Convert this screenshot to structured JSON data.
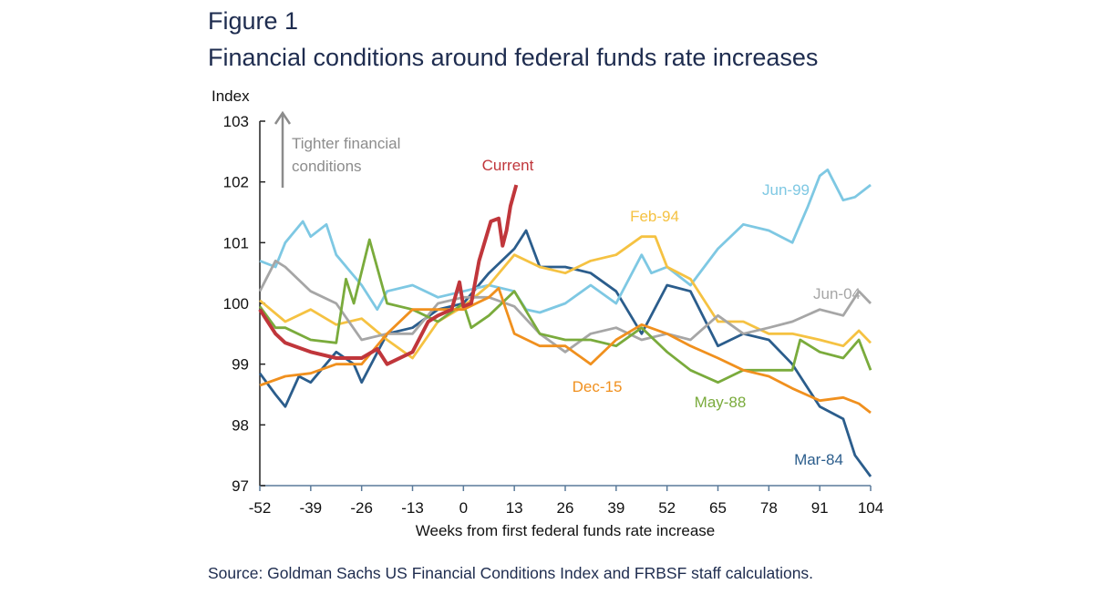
{
  "figure_label": "Figure 1",
  "title": "Financial conditions around federal funds rate increases",
  "source": "Source: Goldman Sachs US Financial Conditions Index and FRBSF staff calculations.",
  "chart_data": {
    "type": "line",
    "title": "Financial conditions around federal funds rate increases",
    "xlabel": "Weeks from first federal funds rate increase",
    "ylabel": "Index",
    "xlim": [
      -52,
      104
    ],
    "ylim": [
      97,
      103
    ],
    "xticks": [
      -52,
      -39,
      -26,
      -13,
      0,
      13,
      26,
      39,
      52,
      65,
      78,
      91,
      104
    ],
    "yticks": [
      97,
      98,
      99,
      100,
      101,
      102,
      103
    ],
    "grid": false,
    "annotation": {
      "text": "Tighter financial conditions",
      "line1": "Tighter financial",
      "line2": "conditions",
      "color": "#8c8c8c"
    },
    "series": [
      {
        "name": "Mar-84",
        "color": "#2b5d8c",
        "x": [
          -52,
          -48,
          -45.5,
          -42,
          -39,
          -32.5,
          -28,
          -26,
          -19.5,
          -13,
          -6.5,
          0,
          6.5,
          13,
          16,
          19.5,
          26,
          32.5,
          39,
          45.5,
          52,
          58,
          65,
          71.5,
          78,
          84,
          91,
          97,
          100,
          104
        ],
        "y": [
          98.85,
          98.5,
          98.3,
          98.8,
          98.7,
          99.2,
          99.0,
          98.7,
          99.5,
          99.6,
          99.9,
          100.0,
          100.5,
          100.9,
          101.2,
          100.6,
          100.6,
          100.5,
          100.2,
          99.5,
          100.3,
          100.2,
          99.3,
          99.5,
          99.4,
          99.0,
          98.3,
          98.1,
          97.5,
          97.15
        ]
      },
      {
        "name": "Jun-99",
        "color": "#7ec8e3",
        "x": [
          -52,
          -48,
          -45.5,
          -41,
          -39,
          -35,
          -32.5,
          -26,
          -22,
          -19.5,
          -13,
          -6.5,
          0,
          6.5,
          13,
          16,
          19.5,
          26,
          32.5,
          39,
          45.5,
          48,
          52,
          58,
          65,
          71.5,
          78,
          84,
          88,
          91,
          93,
          97,
          100,
          104
        ],
        "y": [
          100.7,
          100.6,
          101.0,
          101.35,
          101.1,
          101.3,
          100.8,
          100.3,
          99.9,
          100.2,
          100.3,
          100.1,
          100.2,
          100.3,
          100.2,
          99.9,
          99.85,
          100.0,
          100.3,
          100.0,
          100.8,
          100.5,
          100.6,
          100.3,
          100.9,
          101.3,
          101.2,
          101.0,
          101.6,
          102.1,
          102.2,
          101.7,
          101.75,
          101.95
        ]
      },
      {
        "name": "Feb-94",
        "color": "#f5c242",
        "x": [
          -52,
          -45.5,
          -39,
          -32.5,
          -26,
          -19.5,
          -13,
          -6.5,
          0,
          6.5,
          13,
          19.5,
          26,
          32.5,
          39,
          45.5,
          49,
          52,
          58,
          65,
          71.5,
          78,
          84,
          91,
          97,
          101,
          104
        ],
        "y": [
          100.05,
          99.7,
          99.9,
          99.65,
          99.75,
          99.4,
          99.1,
          99.7,
          99.95,
          100.3,
          100.8,
          100.6,
          100.5,
          100.7,
          100.8,
          101.1,
          101.1,
          100.6,
          100.4,
          99.7,
          99.7,
          99.5,
          99.5,
          99.4,
          99.3,
          99.55,
          99.35
        ]
      },
      {
        "name": "Jun-04",
        "color": "#a6a6a6",
        "x": [
          -52,
          -48,
          -45.5,
          -39,
          -32.5,
          -26,
          -19.5,
          -13,
          -6.5,
          0,
          6.5,
          13,
          19.5,
          26,
          32.5,
          39,
          45.5,
          52,
          58,
          65,
          71.5,
          78,
          84,
          91,
          97,
          101,
          104
        ],
        "y": [
          100.2,
          100.7,
          100.6,
          100.2,
          100.0,
          99.4,
          99.5,
          99.5,
          100.0,
          100.1,
          100.1,
          99.95,
          99.5,
          99.2,
          99.5,
          99.6,
          99.4,
          99.5,
          99.4,
          99.8,
          99.5,
          99.6,
          99.7,
          99.9,
          99.8,
          100.2,
          100.0
        ]
      },
      {
        "name": "May-88",
        "color": "#7aab3c",
        "x": [
          -52,
          -48,
          -45.5,
          -39,
          -32.5,
          -30,
          -28,
          -24,
          -19.5,
          -13,
          -6.5,
          0,
          2,
          6.5,
          13,
          19.5,
          26,
          32.5,
          39,
          45.5,
          52,
          58,
          65,
          71.5,
          78,
          84,
          86,
          91,
          97,
          101,
          104
        ],
        "y": [
          99.95,
          99.6,
          99.6,
          99.4,
          99.35,
          100.4,
          100.0,
          101.05,
          100.0,
          99.9,
          99.7,
          100.0,
          99.6,
          99.8,
          100.2,
          99.5,
          99.4,
          99.4,
          99.3,
          99.6,
          99.2,
          98.9,
          98.7,
          98.9,
          98.9,
          98.9,
          99.4,
          99.2,
          99.1,
          99.4,
          98.9
        ]
      },
      {
        "name": "Dec-15",
        "color": "#f0901e",
        "x": [
          -52,
          -45.5,
          -39,
          -32.5,
          -26,
          -19.5,
          -13,
          -6.5,
          0,
          6.5,
          9,
          13,
          19.5,
          26,
          32.5,
          39,
          45.5,
          52,
          58,
          65,
          71.5,
          78,
          84,
          91,
          97,
          101,
          104
        ],
        "y": [
          98.65,
          98.8,
          98.85,
          99.0,
          99.0,
          99.5,
          99.9,
          99.9,
          99.9,
          100.1,
          100.25,
          99.5,
          99.3,
          99.3,
          99.0,
          99.4,
          99.65,
          99.5,
          99.3,
          99.1,
          98.9,
          98.8,
          98.6,
          98.4,
          98.45,
          98.35,
          98.2
        ]
      },
      {
        "name": "Current",
        "color": "#c0363b",
        "x": [
          -52,
          -48,
          -45.5,
          -39,
          -32.5,
          -26,
          -22,
          -19.5,
          -13,
          -9,
          -6.5,
          -3,
          -1,
          0,
          2,
          4,
          7,
          9,
          10,
          11,
          12,
          13.5
        ],
        "y": [
          99.9,
          99.5,
          99.35,
          99.2,
          99.1,
          99.1,
          99.25,
          99.0,
          99.2,
          99.7,
          99.8,
          99.9,
          100.35,
          99.95,
          100.0,
          100.7,
          101.35,
          101.4,
          100.95,
          101.2,
          101.6,
          101.95
        ]
      }
    ]
  }
}
